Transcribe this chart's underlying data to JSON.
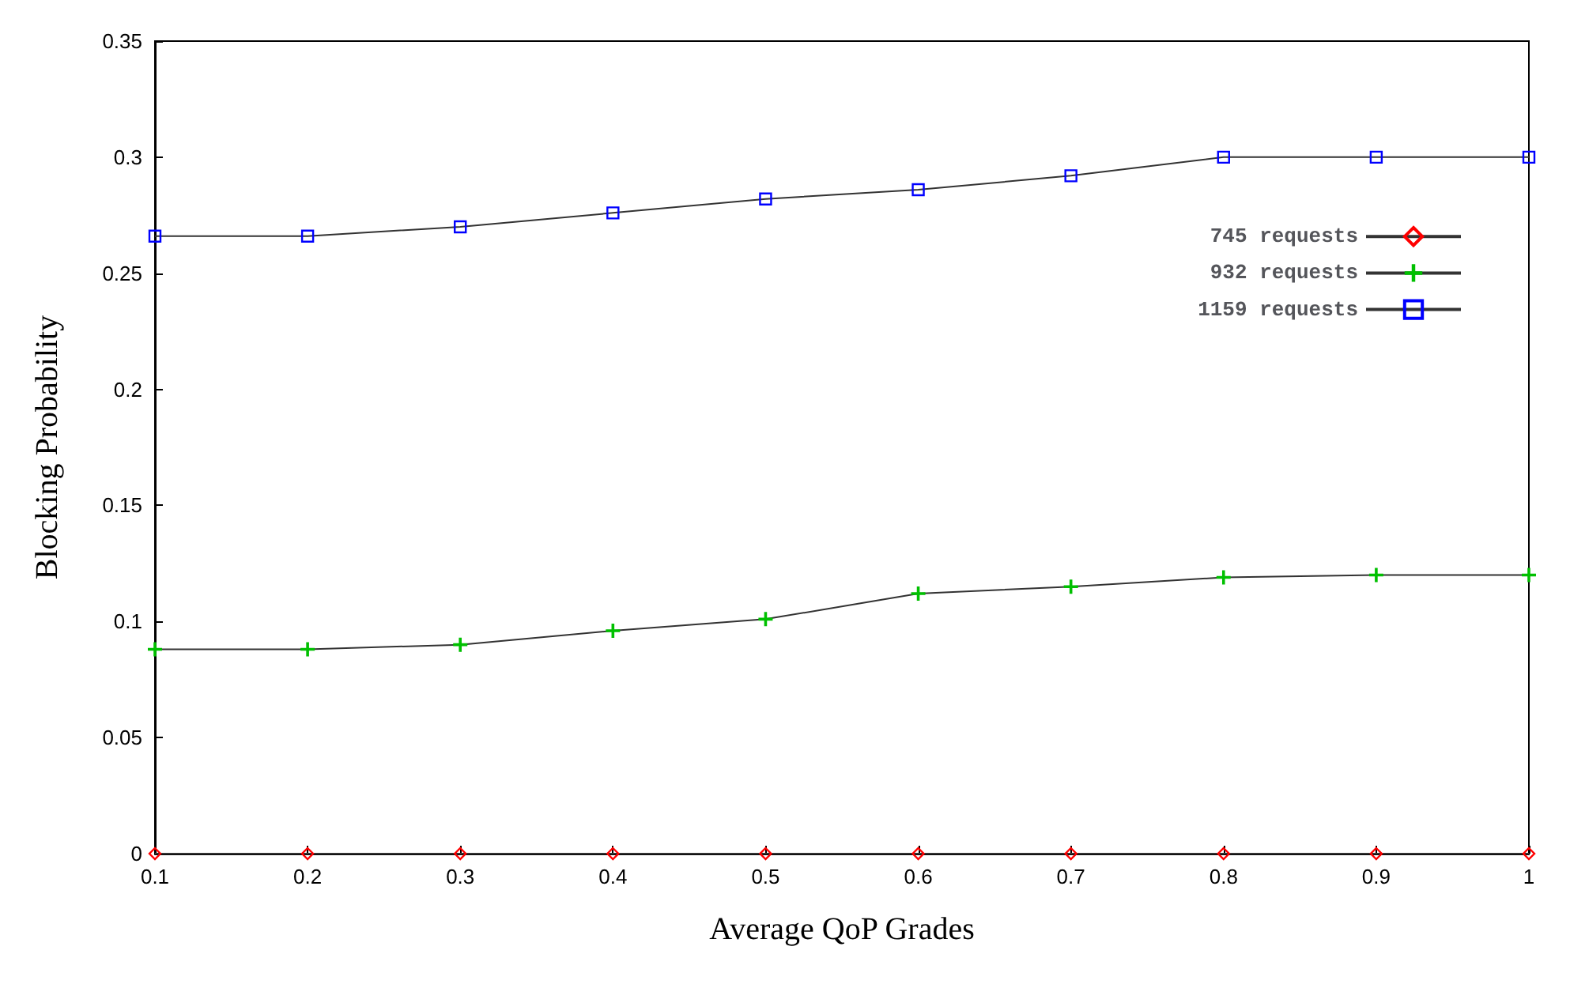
{
  "chart_data": {
    "type": "line",
    "xlabel": "Average QoP Grades",
    "ylabel": "Blocking Probability",
    "x": [
      0.1,
      0.2,
      0.3,
      0.4,
      0.5,
      0.6,
      0.7,
      0.8,
      0.9,
      1
    ],
    "series": [
      {
        "name": "745 requests",
        "color": "#ff0000",
        "marker": "diamond",
        "values": [
          0,
          0,
          0,
          0,
          0,
          0,
          0,
          0,
          0,
          0
        ]
      },
      {
        "name": "932 requests",
        "color": "#00c000",
        "marker": "cross",
        "values": [
          0.088,
          0.088,
          0.09,
          0.096,
          0.101,
          0.112,
          0.115,
          0.119,
          0.12,
          0.12
        ]
      },
      {
        "name": "1159 requests",
        "color": "#0000ff",
        "marker": "square",
        "values": [
          0.266,
          0.266,
          0.27,
          0.276,
          0.282,
          0.286,
          0.292,
          0.3,
          0.3,
          0.3
        ]
      }
    ],
    "xlim": [
      0.1,
      1
    ],
    "xticks": [
      0.1,
      0.2,
      0.3,
      0.4,
      0.5,
      0.6,
      0.7,
      0.8,
      0.9,
      1
    ],
    "ylim": [
      0,
      0.35
    ],
    "yticks": [
      0,
      0.05,
      0.1,
      0.15,
      0.2,
      0.25,
      0.3,
      0.35
    ],
    "grid": false,
    "legend": "top right"
  }
}
